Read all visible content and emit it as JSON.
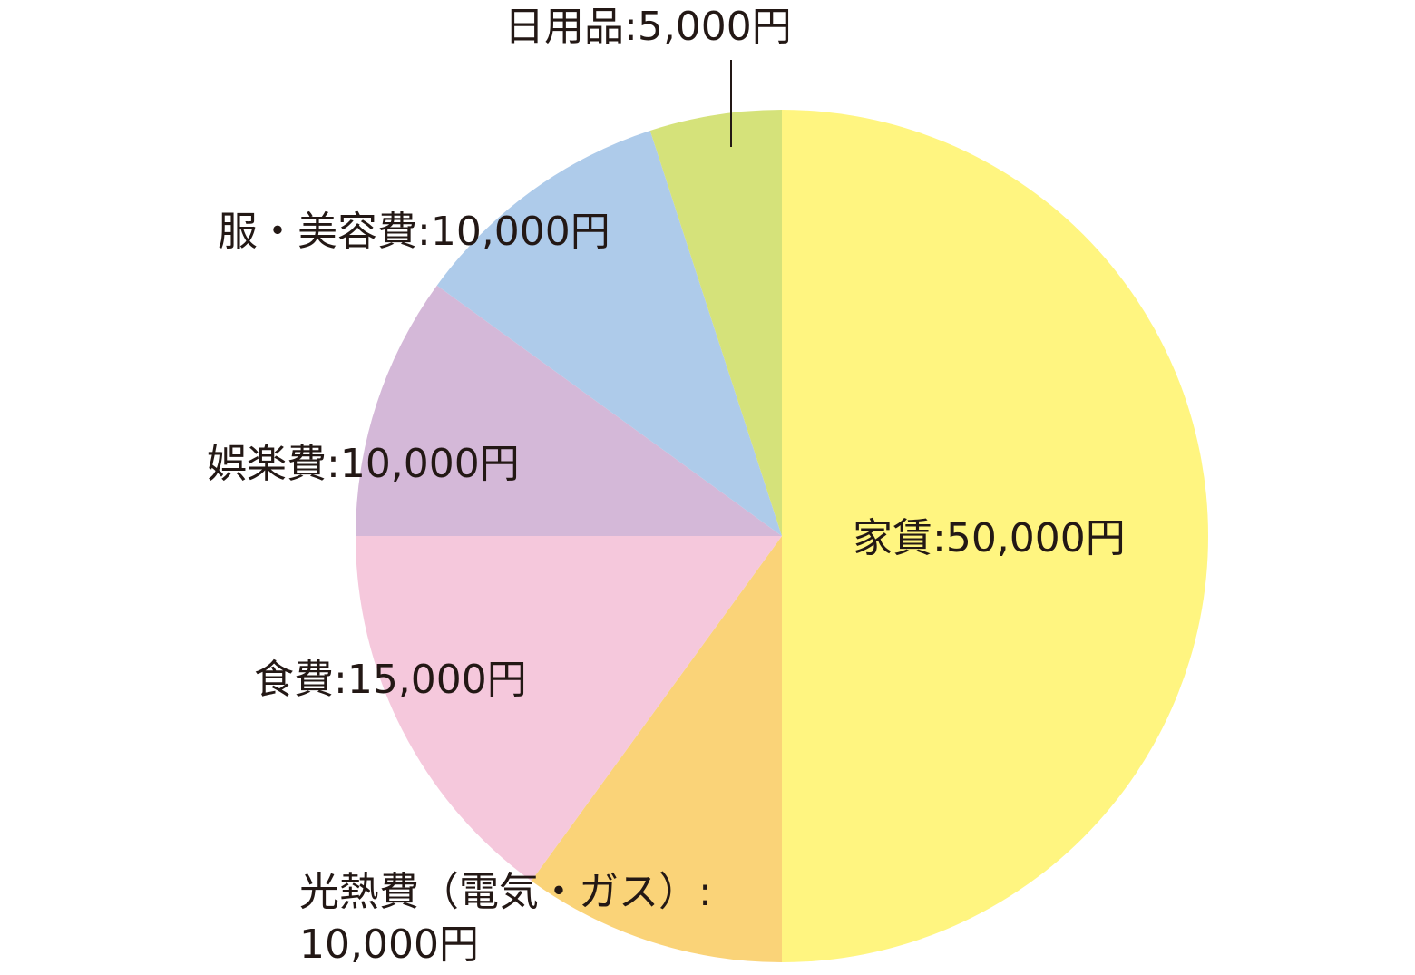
{
  "chart_data": {
    "type": "pie",
    "slices": [
      {
        "label": "家賃:50,000円",
        "category": "家賃",
        "value": 50000,
        "color": "#fff580"
      },
      {
        "label_lines": [
          "光熱費（電気・ガス）:",
          "10,000円"
        ],
        "category": "光熱費（電気・ガス）",
        "value": 10000,
        "color": "#fad378"
      },
      {
        "label": "食費:15,000円",
        "category": "食費",
        "value": 15000,
        "color": "#f5c8dc"
      },
      {
        "label": "娯楽費:10,000円",
        "category": "娯楽費",
        "value": 10000,
        "color": "#d4b8d8"
      },
      {
        "label": "服・美容費:10,000円",
        "category": "服・美容費",
        "value": 10000,
        "color": "#aecbea"
      },
      {
        "label": "日用品:5,000円",
        "category": "日用品",
        "value": 5000,
        "color": "#d5e27a"
      }
    ],
    "start_angle": "12 o'clock",
    "direction": "clockwise",
    "legend": "none"
  }
}
